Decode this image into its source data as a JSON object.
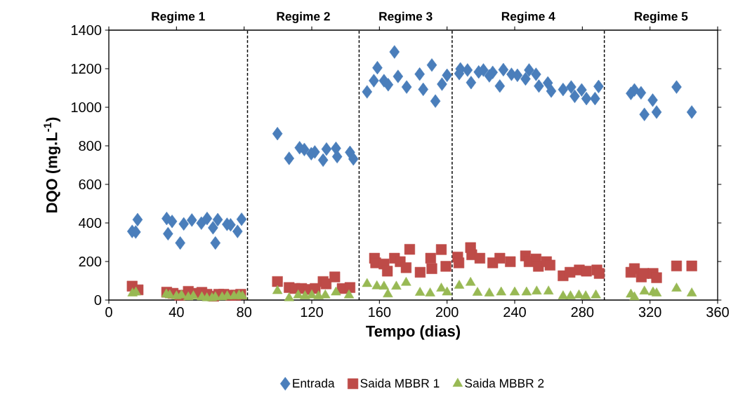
{
  "chart_data": {
    "type": "scatter",
    "xlabel": "Tempo (dias)",
    "ylabel": "DQO (mg.L$^{-1}$)",
    "xlim": [
      0,
      360
    ],
    "xticks": [
      0,
      40,
      80,
      120,
      160,
      200,
      240,
      280,
      320,
      360
    ],
    "ylim": [
      0,
      1400
    ],
    "yticks": [
      0,
      200,
      400,
      600,
      800,
      1000,
      1200,
      1400
    ],
    "grid": false,
    "legend": "bottom",
    "ref_lines": [
      {
        "axis": "x",
        "value": 82,
        "color": "#000000",
        "line_style": "dashed"
      },
      {
        "axis": "x",
        "value": 148,
        "color": "#000000",
        "line_style": "dashed"
      },
      {
        "axis": "x",
        "value": 203,
        "color": "#000000",
        "line_style": "dashed"
      },
      {
        "axis": "x",
        "value": 293,
        "color": "#000000",
        "line_style": "dashed"
      }
    ],
    "annotations": [
      "Regime 1",
      "Regime 2",
      "Regime 3",
      "Regime 4",
      "Regime 5"
    ],
    "series": [
      {
        "name": "Entrada",
        "color": "#4a7ebb",
        "marker": "diamond",
        "x": [
          13.8,
          15.9,
          17,
          34.2,
          35,
          37.4,
          42.2,
          44.3,
          49.1,
          54.7,
          58.1,
          61.6,
          63,
          64.4,
          69.9,
          72,
          76.1,
          78.5,
          99.7,
          106.6,
          112.8,
          115.6,
          119.7,
          121.8,
          126.7,
          128.7,
          134.3,
          135,
          142.6,
          144.6,
          152.7,
          156.7,
          158.8,
          162.7,
          165.2,
          168.9,
          171,
          176.1,
          183.8,
          185.9,
          191,
          193.1,
          197,
          200,
          207.2,
          207.9,
          212.1,
          214.2,
          218.7,
          221.5,
          225,
          227,
          231.2,
          233.3,
          238.1,
          241.6,
          246.4,
          248.5,
          252.6,
          254.3,
          259.6,
          261.6,
          268.6,
          273.4,
          275.5,
          279.6,
          282.4,
          287.5,
          289.6,
          308.7,
          310.8,
          314.7,
          316.7,
          321.6,
          323.9,
          335.7,
          344.7
        ],
        "values": [
          356,
          353,
          417,
          423,
          344,
          408,
          296,
          395,
          415,
          399,
          423,
          375,
          296,
          417,
          393,
          390,
          356,
          419,
          863,
          735,
          790,
          781,
          759,
          768,
          726,
          783,
          787,
          744,
          766,
          732,
          1080,
          1138,
          1205,
          1138,
          1117,
          1287,
          1160,
          1105,
          1172,
          1093,
          1219,
          1032,
          1120,
          1166,
          1175,
          1199,
          1193,
          1128,
          1183,
          1193,
          1163,
          1181,
          1110,
          1195,
          1171,
          1166,
          1147,
          1193,
          1171,
          1110,
          1126,
          1084,
          1092,
          1105,
          1057,
          1090,
          1045,
          1045,
          1108,
          1072,
          1090,
          1075,
          963,
          1037,
          975,
          1105,
          975
        ]
      },
      {
        "name": "Saida MBBR 1",
        "color": "#be4b48",
        "marker": "square",
        "x": [
          13.8,
          17.3,
          34.2,
          38,
          42,
          47,
          50,
          55,
          58,
          62,
          65,
          68,
          72,
          75,
          78,
          99.7,
          106.6,
          110,
          114,
          118,
          122,
          126.7,
          128.5,
          133.6,
          138,
          142.6,
          157.1,
          157.8,
          162.7,
          164.7,
          168.9,
          172.3,
          175.8,
          177.9,
          184.1,
          190.3,
          191,
          196.6,
          199.3,
          206.3,
          207,
          213.9,
          214.6,
          219.4,
          227,
          231.2,
          237.4,
          246.4,
          248.5,
          252.6,
          254,
          258.8,
          260.9,
          268.6,
          272.7,
          278.2,
          282.4,
          288.6,
          290,
          308.7,
          310.8,
          314.9,
          316.3,
          321.8,
          323.9,
          335.7,
          344.7
        ],
        "values": [
          72,
          53,
          41,
          35,
          25,
          45,
          35,
          40,
          30,
          20,
          30,
          30,
          25,
          25,
          30,
          96,
          65,
          60,
          60,
          55,
          60,
          96,
          84,
          120,
          60,
          65,
          217,
          193,
          187,
          150,
          217,
          199,
          168,
          263,
          144,
          217,
          163,
          262,
          175,
          223,
          193,
          272,
          235,
          217,
          193,
          217,
          199,
          229,
          199,
          213,
          175,
          199,
          181,
          126,
          144,
          156,
          150,
          156,
          138,
          144,
          163,
          120,
          138,
          138,
          116,
          177,
          177
        ]
      },
      {
        "name": "Saida MBBR 2",
        "color": "#98b954",
        "marker": "triangle",
        "x": [
          14,
          16,
          34,
          36,
          40,
          43,
          47,
          50,
          55,
          58,
          61,
          63,
          67,
          70,
          74,
          77,
          79,
          99.7,
          106.6,
          112,
          116,
          120,
          124,
          128,
          134.3,
          142,
          152.7,
          158.5,
          162.7,
          165,
          170,
          175.8,
          184,
          190,
          196.6,
          200,
          207.2,
          213.9,
          218,
          225,
          232,
          240,
          247,
          253,
          260,
          268.6,
          273,
          278,
          282,
          288,
          308.7,
          310.8,
          316.7,
          321.8,
          323.9,
          335.7,
          344.7
        ],
        "values": [
          35,
          40,
          30,
          25,
          20,
          25,
          15,
          20,
          15,
          10,
          10,
          15,
          15,
          20,
          20,
          25,
          20,
          47,
          10,
          25,
          20,
          25,
          20,
          25,
          40,
          25,
          84,
          72,
          70,
          30,
          70,
          90,
          38,
          35,
          60,
          40,
          75,
          90,
          38,
          35,
          40,
          40,
          40,
          45,
          45,
          20,
          20,
          25,
          20,
          25,
          29,
          15,
          45,
          40,
          35,
          60,
          35
        ]
      }
    ]
  }
}
